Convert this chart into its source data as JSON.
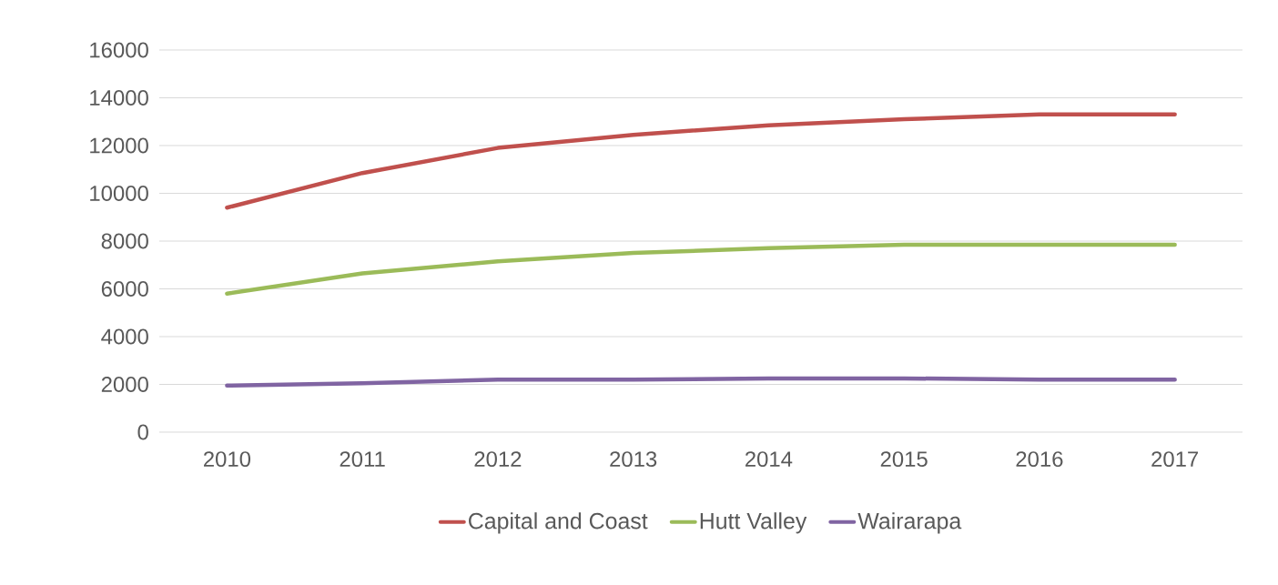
{
  "chart_data": {
    "type": "line",
    "categories": [
      "2010",
      "2011",
      "2012",
      "2013",
      "2014",
      "2015",
      "2016",
      "2017"
    ],
    "series": [
      {
        "name": "Capital and Coast",
        "color": "#c0504d",
        "values": [
          9400,
          10850,
          11900,
          12450,
          12850,
          13100,
          13300,
          13300
        ]
      },
      {
        "name": "Hutt Valley",
        "color": "#9bbb59",
        "values": [
          5800,
          6650,
          7150,
          7500,
          7700,
          7850,
          7850,
          7850
        ]
      },
      {
        "name": "Wairarapa",
        "color": "#8064a2",
        "values": [
          1950,
          2050,
          2200,
          2200,
          2250,
          2250,
          2200,
          2200
        ]
      }
    ],
    "ylim": [
      0,
      16000
    ],
    "yticks": [
      0,
      2000,
      4000,
      6000,
      8000,
      10000,
      12000,
      14000,
      16000
    ],
    "grid": "y",
    "legend": "bottom",
    "marker": "none",
    "line_style": "solid"
  }
}
